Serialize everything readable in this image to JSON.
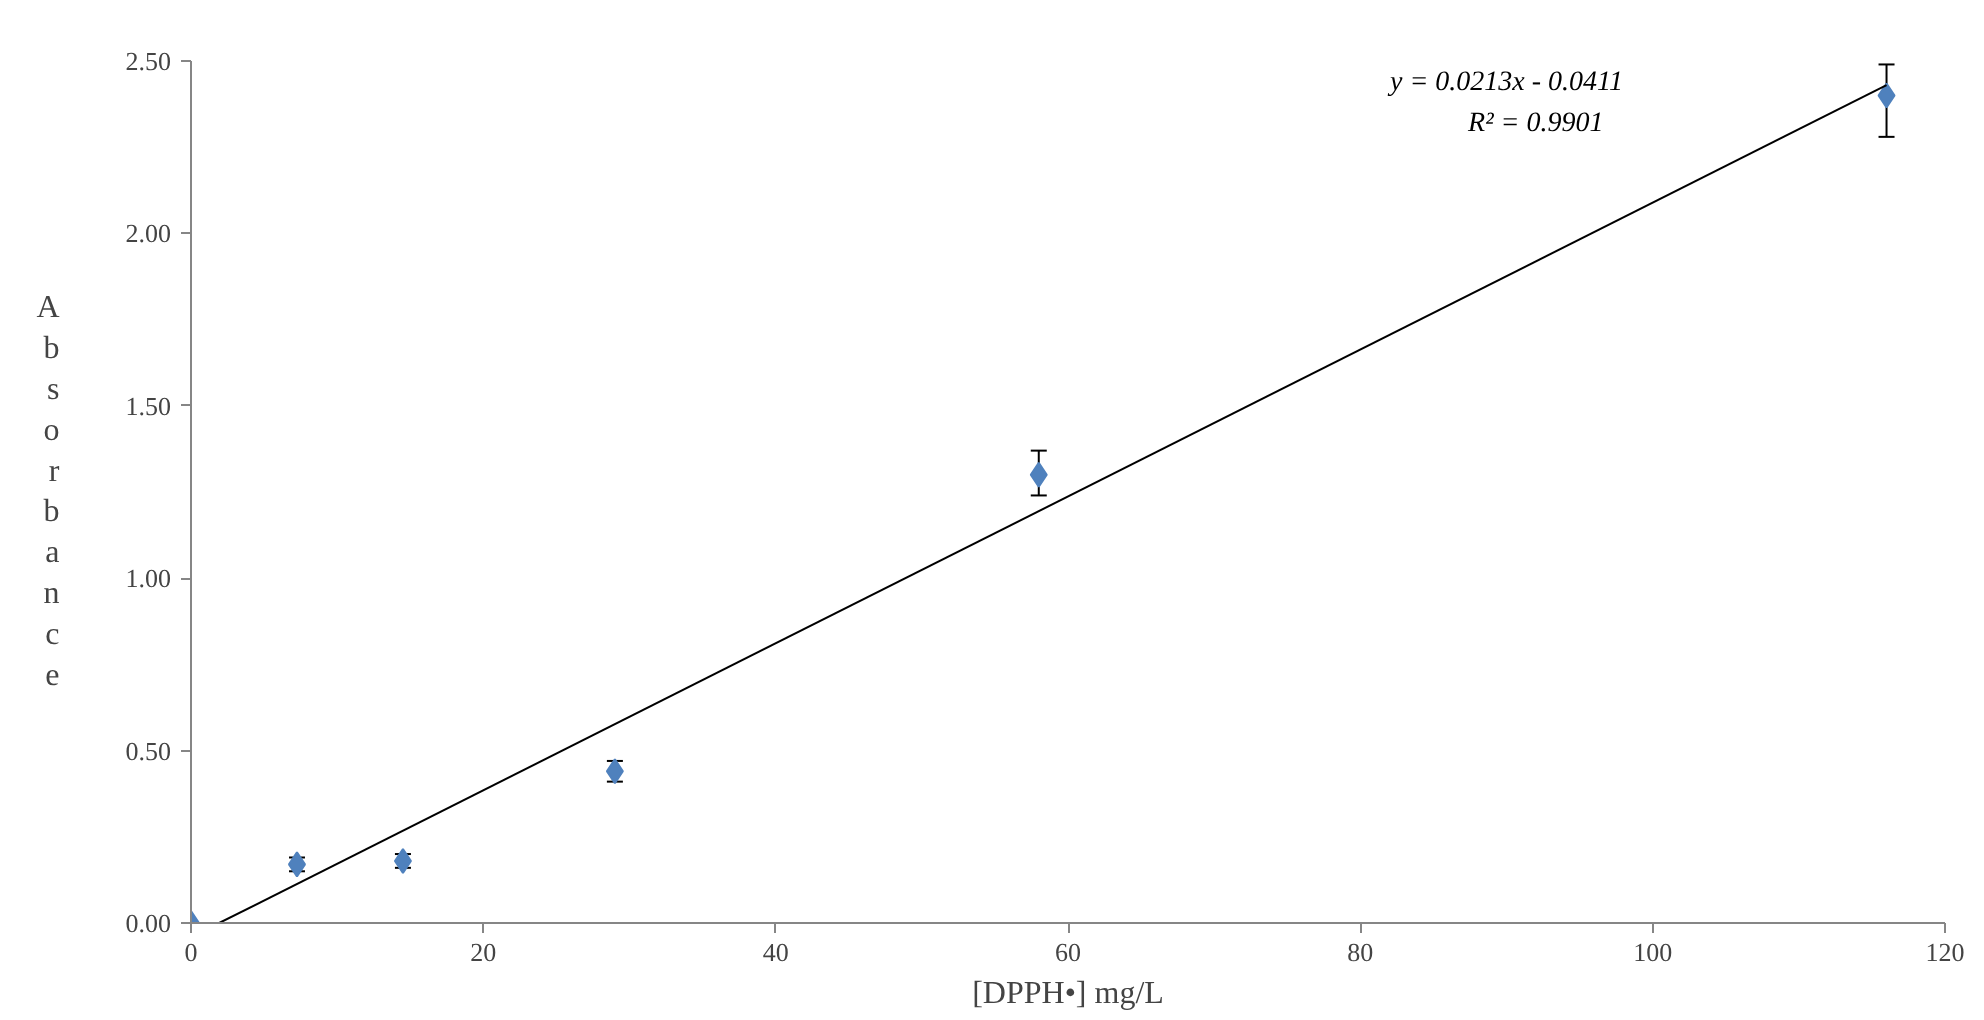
{
  "chart_data": {
    "type": "scatter",
    "xlabel": "[DPPH•] mg/L",
    "ylabel": "Absorbance",
    "x": [
      0,
      7.25,
      14.5,
      29,
      58,
      116
    ],
    "series": [
      {
        "color": "#4f81bd",
        "marker": "diamond",
        "values": [
          0,
          0.17,
          0.18,
          0.44,
          1.3,
          2.4
        ],
        "errors": [
          null,
          0.02,
          0.02,
          0.03,
          [
            1.24,
            1.37
          ],
          [
            2.28,
            2.49
          ]
        ]
      },
      {
        "type": "line",
        "marker": "none",
        "color": "#000000",
        "x": [
          1.93,
          116
        ],
        "values": [
          0,
          2.43
        ]
      }
    ],
    "annotations": [
      "y = 0.0213x - 0.0411",
      "R² = 0.9901"
    ],
    "xlim": [
      0,
      120
    ],
    "xticks": [
      0,
      20,
      40,
      60,
      80,
      100,
      120
    ],
    "ylim": [
      0,
      2.5
    ],
    "yticks": [
      {
        "value": 0,
        "label": "0.00"
      },
      {
        "value": 0.5,
        "label": "0.50"
      },
      {
        "value": 1,
        "label": "1.00"
      },
      {
        "value": 1.5,
        "label": "1.50"
      },
      {
        "value": 2,
        "label": "2.00"
      },
      {
        "value": 2.5,
        "label": "2.50"
      }
    ],
    "grid": false
  }
}
